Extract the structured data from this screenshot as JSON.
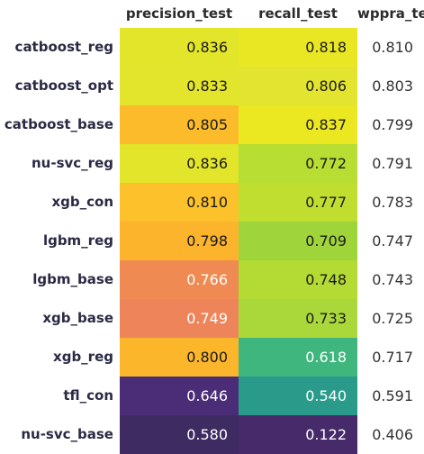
{
  "chart_data": {
    "type": "table",
    "columns": [
      "precision_test",
      "recall_test",
      "wppra_test"
    ],
    "rows": [
      {
        "model": "catboost_reg",
        "values": [
          0.836,
          0.818,
          0.81
        ],
        "colors": [
          "#e2e52a",
          "#e9e724",
          null
        ],
        "text": [
          "dark",
          "dark",
          "plain"
        ]
      },
      {
        "model": "catboost_opt",
        "values": [
          0.833,
          0.806,
          0.803
        ],
        "colors": [
          "#e3e52c",
          "#e2e430",
          null
        ],
        "text": [
          "dark",
          "dark",
          "plain"
        ]
      },
      {
        "model": "catboost_base",
        "values": [
          0.805,
          0.837,
          0.799
        ],
        "colors": [
          "#fcbb2a",
          "#ebe721",
          null
        ],
        "text": [
          "dark",
          "dark",
          "plain"
        ]
      },
      {
        "model": "nu-svc_reg",
        "values": [
          0.836,
          0.772,
          0.791
        ],
        "colors": [
          "#e2e52a",
          "#b8dd33",
          null
        ],
        "text": [
          "dark",
          "dark",
          "plain"
        ]
      },
      {
        "model": "xgb_con",
        "values": [
          0.81,
          0.777,
          0.783
        ],
        "colors": [
          "#fcc12b",
          "#c0de2f",
          null
        ],
        "text": [
          "dark",
          "dark",
          "plain"
        ]
      },
      {
        "model": "lgbm_reg",
        "values": [
          0.798,
          0.709,
          0.747
        ],
        "colors": [
          "#fdb42d",
          "#9fd43b",
          null
        ],
        "text": [
          "dark",
          "dark",
          "plain"
        ]
      },
      {
        "model": "lgbm_base",
        "values": [
          0.766,
          0.748,
          0.743
        ],
        "colors": [
          "#ef8a52",
          "#b4da34",
          null
        ],
        "text": [
          "light",
          "dark",
          "plain"
        ]
      },
      {
        "model": "xgb_base",
        "values": [
          0.749,
          0.733,
          0.725
        ],
        "colors": [
          "#ee845a",
          "#aad83a",
          null
        ],
        "text": [
          "light",
          "dark",
          "plain"
        ]
      },
      {
        "model": "xgb_reg",
        "values": [
          0.8,
          0.618,
          0.717
        ],
        "colors": [
          "#fcb62c",
          "#3fb67e",
          null
        ],
        "text": [
          "dark",
          "light",
          "plain"
        ]
      },
      {
        "model": "tfl_con",
        "values": [
          0.646,
          0.54,
          0.591
        ],
        "colors": [
          "#4a2c77",
          "#2a9a8a",
          null
        ],
        "text": [
          "light",
          "light",
          "plain"
        ]
      },
      {
        "model": "nu-svc_base",
        "values": [
          0.58,
          0.122,
          0.406
        ],
        "colors": [
          "#3e2b62",
          "#462a6a",
          null
        ],
        "text": [
          "light",
          "light",
          "plain"
        ]
      }
    ]
  }
}
